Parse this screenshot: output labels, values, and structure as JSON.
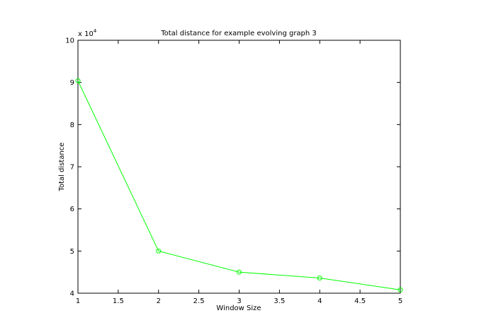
{
  "chart_data": {
    "type": "line",
    "title": "Total distance for example evolving graph 3",
    "xlabel": "Window Size",
    "ylabel": "Total distance",
    "y_multiplier_label": "x 10",
    "y_multiplier_exponent": "4",
    "xlim": [
      1,
      5
    ],
    "ylim": [
      4,
      10
    ],
    "x_ticks": [
      1,
      1.5,
      2,
      2.5,
      3,
      3.5,
      4,
      4.5,
      5
    ],
    "x_tick_labels": [
      "1",
      "1.5",
      "2",
      "2.5",
      "3",
      "3.5",
      "4",
      "4.5",
      "5"
    ],
    "y_ticks": [
      4,
      5,
      6,
      7,
      8,
      9,
      10
    ],
    "y_tick_labels": [
      "4",
      "5",
      "6",
      "7",
      "8",
      "9",
      "10"
    ],
    "grid": false,
    "series": [
      {
        "color": "#00ff00",
        "marker": "circle",
        "x": [
          1,
          2,
          3,
          4,
          5
        ],
        "y": [
          9.04,
          5.0,
          4.5,
          4.36,
          4.08
        ]
      }
    ]
  }
}
